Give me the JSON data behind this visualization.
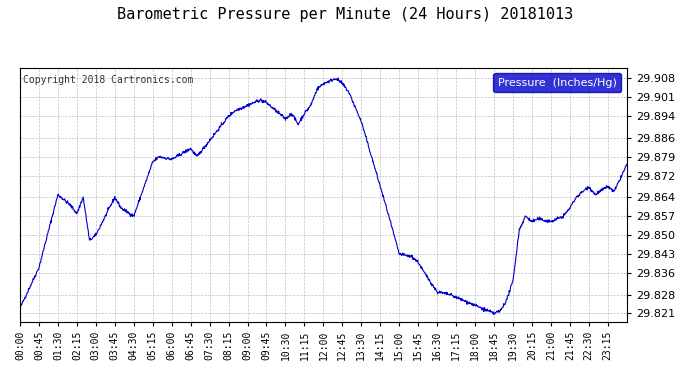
{
  "title": "Barometric Pressure per Minute (24 Hours) 20181013",
  "copyright": "Copyright 2018 Cartronics.com",
  "legend_label": "Pressure  (Inches/Hg)",
  "line_color": "#0000CC",
  "background_color": "#ffffff",
  "grid_color": "#c0c0c0",
  "yticks": [
    29.821,
    29.828,
    29.836,
    29.843,
    29.85,
    29.857,
    29.864,
    29.872,
    29.879,
    29.886,
    29.894,
    29.901,
    29.908
  ],
  "ylim": [
    29.818,
    29.912
  ],
  "xtick_labels": [
    "00:00",
    "00:45",
    "01:30",
    "02:15",
    "03:00",
    "03:45",
    "04:30",
    "05:15",
    "06:00",
    "06:45",
    "07:30",
    "08:15",
    "09:00",
    "09:45",
    "10:30",
    "11:15",
    "12:00",
    "12:45",
    "13:30",
    "14:15",
    "15:00",
    "15:45",
    "16:30",
    "17:15",
    "18:00",
    "18:45",
    "19:30",
    "20:15",
    "21:00",
    "21:45",
    "22:30",
    "23:15"
  ],
  "keypoints_t": [
    0,
    45,
    90,
    120,
    135,
    150,
    165,
    180,
    225,
    240,
    270,
    315,
    330,
    360,
    405,
    420,
    450,
    465,
    495,
    510,
    540,
    570,
    585,
    600,
    630,
    645,
    660,
    675,
    690,
    705,
    720,
    735,
    750,
    765,
    780,
    810,
    840,
    870,
    900,
    930,
    945,
    960,
    990,
    1020,
    1035,
    1050,
    1065,
    1080,
    1095,
    1110,
    1125,
    1140,
    1155,
    1170,
    1185,
    1200,
    1215,
    1230,
    1260,
    1290,
    1305,
    1320,
    1335,
    1350,
    1365,
    1395,
    1410,
    1440
  ],
  "keypoints_p": [
    29.823,
    29.838,
    29.865,
    29.861,
    29.858,
    29.864,
    29.848,
    29.85,
    29.864,
    29.86,
    29.857,
    29.877,
    29.879,
    29.878,
    29.882,
    29.879,
    29.885,
    29.888,
    29.894,
    29.896,
    29.898,
    29.9,
    29.899,
    29.897,
    29.893,
    29.895,
    29.891,
    29.895,
    29.898,
    29.904,
    29.906,
    29.907,
    29.908,
    29.906,
    29.903,
    29.892,
    29.876,
    29.86,
    29.843,
    29.842,
    29.84,
    29.836,
    29.829,
    29.828,
    29.827,
    29.826,
    29.825,
    29.824,
    29.823,
    29.822,
    29.821,
    29.822,
    29.826,
    29.833,
    29.852,
    29.857,
    29.855,
    29.856,
    29.855,
    29.857,
    29.86,
    29.864,
    29.866,
    29.868,
    29.865,
    29.868,
    29.866,
    29.876
  ]
}
